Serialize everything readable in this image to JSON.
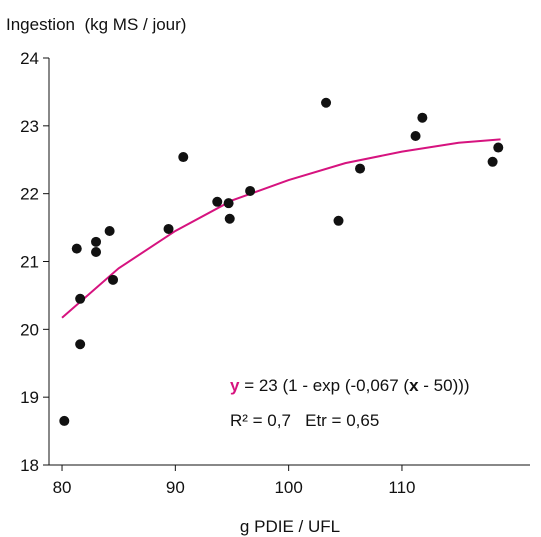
{
  "chart_data": {
    "type": "scatter",
    "title": "Ingestion  (kg MS / jour)",
    "x_label": "g PDIE / UFL",
    "xlim": [
      78.85,
      121.3
    ],
    "ylim": [
      18,
      24
    ],
    "xticks": [
      80,
      90,
      100,
      110
    ],
    "yticks": [
      18,
      19,
      20,
      21,
      22,
      23,
      24
    ],
    "points": {
      "color": "#111111",
      "x": [
        80.2,
        81.3,
        81.6,
        81.6,
        83.0,
        83.0,
        84.2,
        84.5,
        89.4,
        90.7,
        93.7,
        94.7,
        94.8,
        96.6,
        103.3,
        104.4,
        106.3,
        111.2,
        111.8,
        118.0,
        118.5
      ],
      "y": [
        18.65,
        21.19,
        20.45,
        19.78,
        21.29,
        21.14,
        21.45,
        20.73,
        21.48,
        22.54,
        21.88,
        21.86,
        21.63,
        22.04,
        23.34,
        21.6,
        22.37,
        22.85,
        23.12,
        22.47,
        22.68
      ]
    },
    "fit": {
      "color": "#d6137f",
      "x": [
        80,
        85,
        90,
        95,
        100,
        105,
        110,
        115,
        118.7
      ],
      "y": [
        20.17,
        20.9,
        21.45,
        21.9,
        22.2,
        22.45,
        22.62,
        22.75,
        22.8
      ]
    },
    "equation": [
      "y",
      " = 23 (1 - exp (-0,067 (",
      "x",
      " - 50)))"
    ],
    "stats": "R² = 0,7   Etr = 0,65"
  }
}
